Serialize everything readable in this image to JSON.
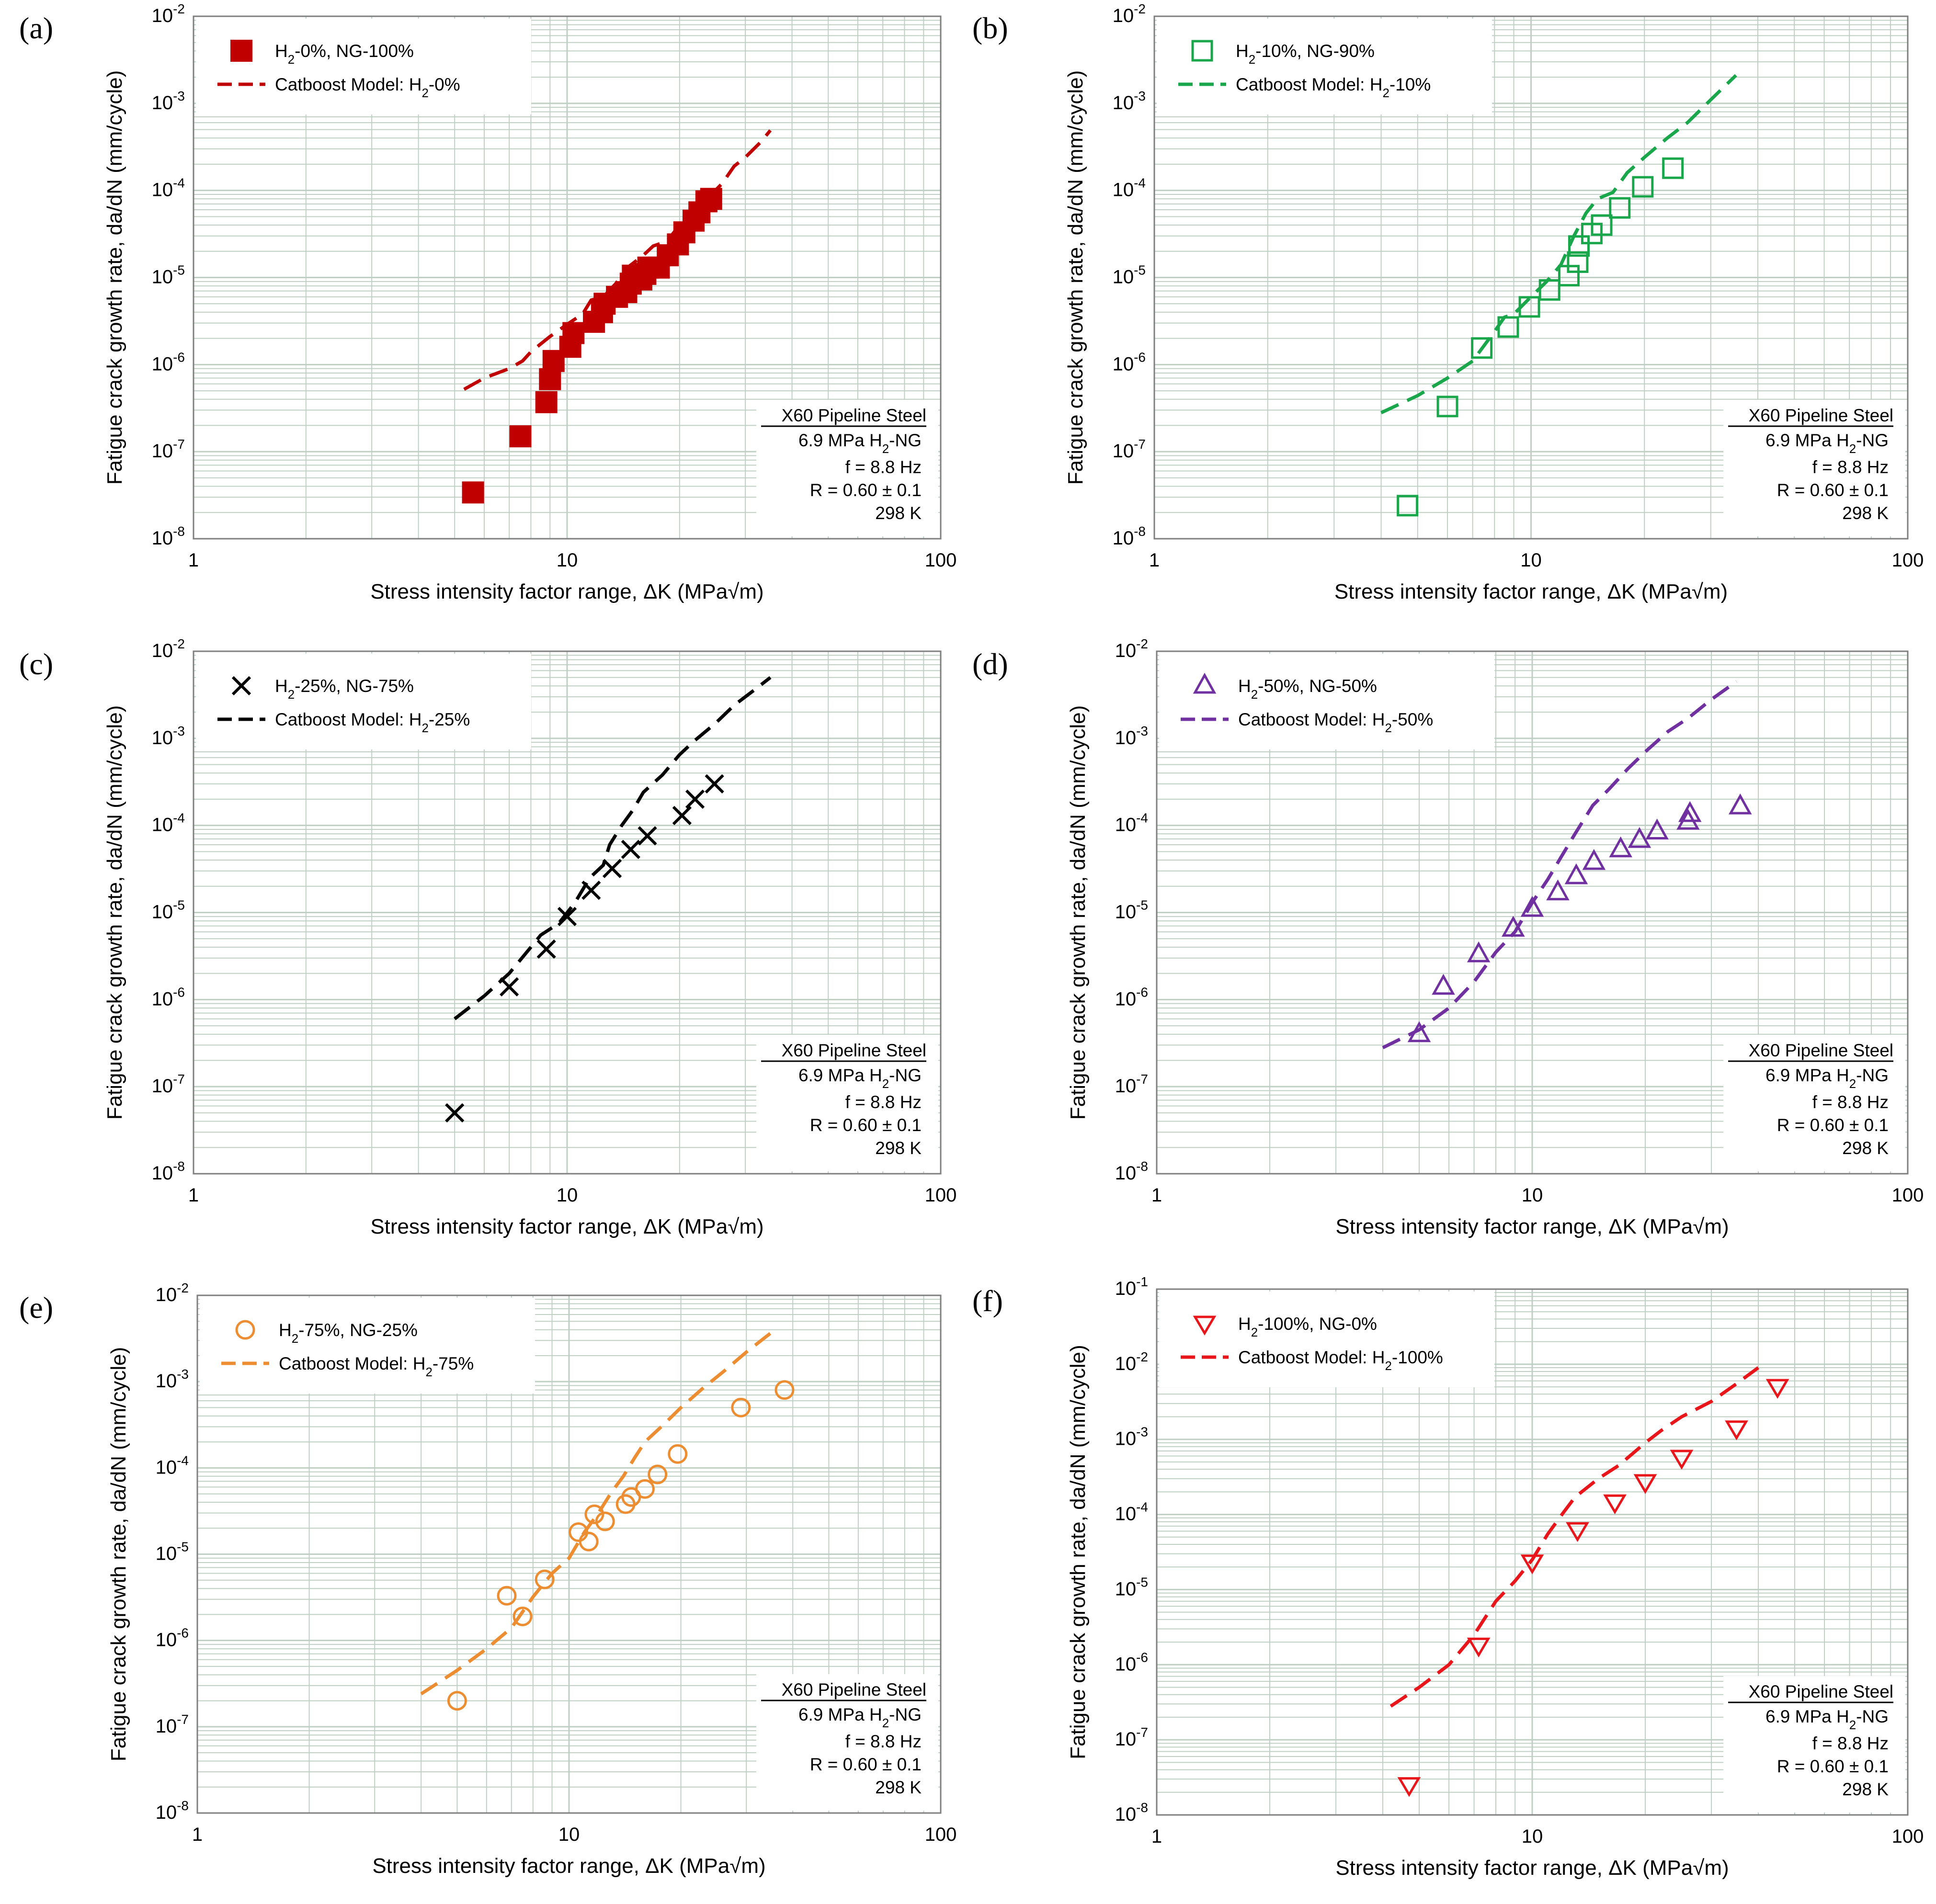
{
  "figure": {
    "x_axis_label": "Stress intensity factor range, ΔK (MPa√m)",
    "y_axis_label": "Fatigue crack growth rate, da/dN (mm/cycle)",
    "note": {
      "title": "X60 Pipeline Steel",
      "pressure": "6.9 MPa H2-NG",
      "frequency": "f = 8.8 Hz",
      "ratio": "R = 0.60 ± 0.1",
      "temperature": "298 K"
    }
  },
  "chart_data": [
    {
      "panel": "(a)",
      "type": "scatter",
      "color": "#c00000",
      "marker": "filled-square",
      "xscale": "log",
      "yscale": "log",
      "xlim": [
        1,
        100
      ],
      "ylim": [
        1e-08,
        0.01
      ],
      "x_ticks": [
        "1",
        "10",
        "100"
      ],
      "y_tick_exponents": [
        "-8",
        "-7",
        "-6",
        "-5",
        "-4",
        "-3",
        "-2"
      ],
      "legend": {
        "data": "H2-0%, NG-100%",
        "model": "Catboost Model: H2-0%"
      },
      "series": [
        {
          "name": "H2-0%, NG-100%",
          "kind": "data",
          "points": [
            [
              5.6,
              3.4e-08
            ],
            [
              7.5,
              1.5e-07
            ],
            [
              8.8,
              3.7e-07
            ],
            [
              9.0,
              6.8e-07
            ],
            [
              9.2,
              1.1e-06
            ],
            [
              10.2,
              1.6e-06
            ],
            [
              10.4,
              2.3e-06
            ],
            [
              11.8,
              3.1e-06
            ],
            [
              12.4,
              4e-06
            ],
            [
              12.6,
              5e-06
            ],
            [
              13.6,
              6e-06
            ],
            [
              14.4,
              6.8e-06
            ],
            [
              14.8,
              8.5e-06
            ],
            [
              15.0,
              1.05e-05
            ],
            [
              15.8,
              9.5e-06
            ],
            [
              16.2,
              1.1e-05
            ],
            [
              16.5,
              1.3e-05
            ],
            [
              17.6,
              1.3e-05
            ],
            [
              18.6,
              1.8e-05
            ],
            [
              19.8,
              2.4e-05
            ],
            [
              20.6,
              3.3e-05
            ],
            [
              21.8,
              4.5e-05
            ],
            [
              22.6,
              5.6e-05
            ],
            [
              23.6,
              7.5e-05
            ],
            [
              24.3,
              8e-05
            ]
          ]
        },
        {
          "name": "Catboost Model: H2-0%",
          "kind": "model",
          "points": [
            [
              5.3,
              5.2e-07
            ],
            [
              6.0,
              7e-07
            ],
            [
              7.0,
              9e-07
            ],
            [
              7.6,
              1.1e-06
            ],
            [
              8.0,
              1.4e-06
            ],
            [
              9.0,
              2.1e-06
            ],
            [
              10.0,
              2.9e-06
            ],
            [
              11.0,
              3.8e-06
            ],
            [
              11.6,
              5.5e-06
            ],
            [
              12.5,
              6e-06
            ],
            [
              13.5,
              8.5e-06
            ],
            [
              14.5,
              1.3e-05
            ],
            [
              16.0,
              1.8e-05
            ],
            [
              17.0,
              2.3e-05
            ],
            [
              18.5,
              2.6e-05
            ],
            [
              20.0,
              4e-05
            ],
            [
              22.0,
              5.5e-05
            ],
            [
              24.0,
              8.5e-05
            ],
            [
              26.0,
              0.00012
            ],
            [
              28.0,
              0.00019
            ],
            [
              30.0,
              0.00024
            ],
            [
              33.0,
              0.00036
            ],
            [
              35.0,
              0.00049
            ]
          ]
        }
      ]
    },
    {
      "panel": "(b)",
      "type": "scatter",
      "color": "#1aa64a",
      "marker": "open-square",
      "xscale": "log",
      "yscale": "log",
      "xlim": [
        1,
        100
      ],
      "ylim": [
        1e-08,
        0.01
      ],
      "x_ticks": [
        "1",
        "10",
        "100"
      ],
      "y_tick_exponents": [
        "-8",
        "-7",
        "-6",
        "-5",
        "-4",
        "-3",
        "-2"
      ],
      "legend": {
        "data": "H2-10%, NG-90%",
        "model": "Catboost Model: H2-10%"
      },
      "series": [
        {
          "name": "H2-10%, NG-90%",
          "kind": "data",
          "points": [
            [
              4.7,
              2.4e-08
            ],
            [
              6.0,
              3.3e-07
            ],
            [
              7.4,
              1.55e-06
            ],
            [
              8.7,
              2.7e-06
            ],
            [
              9.9,
              4.6e-06
            ],
            [
              11.2,
              7.2e-06
            ],
            [
              12.6,
              1.05e-05
            ],
            [
              13.3,
              1.5e-05
            ],
            [
              13.4,
              2.3e-05
            ],
            [
              14.5,
              3.2e-05
            ],
            [
              15.4,
              4e-05
            ],
            [
              17.2,
              6.3e-05
            ],
            [
              19.8,
              0.00011
            ],
            [
              23.8,
              0.00018
            ]
          ]
        },
        {
          "name": "Catboost Model: H2-10%",
          "kind": "model",
          "points": [
            [
              4.0,
              2.8e-07
            ],
            [
              5.0,
              4.4e-07
            ],
            [
              6.0,
              7e-07
            ],
            [
              7.0,
              1.1e-06
            ],
            [
              8.0,
              2.4e-06
            ],
            [
              8.5,
              3.5e-06
            ],
            [
              9.0,
              3.8e-06
            ],
            [
              10.0,
              6e-06
            ],
            [
              11.0,
              9e-06
            ],
            [
              12.0,
              1.4e-05
            ],
            [
              13.0,
              3e-05
            ],
            [
              14.0,
              5.5e-05
            ],
            [
              15.0,
              8e-05
            ],
            [
              16.5,
              9.5e-05
            ],
            [
              18.0,
              0.00016
            ],
            [
              20.0,
              0.00024
            ],
            [
              23.0,
              0.0004
            ],
            [
              26.0,
              0.0006
            ],
            [
              30.0,
              0.0011
            ],
            [
              35.0,
              0.0021
            ]
          ]
        }
      ]
    },
    {
      "panel": "(c)",
      "type": "scatter",
      "color": "#000000",
      "marker": "cross",
      "xscale": "log",
      "yscale": "log",
      "xlim": [
        1,
        100
      ],
      "ylim": [
        1e-08,
        0.01
      ],
      "x_ticks": [
        "1",
        "10",
        "100"
      ],
      "y_tick_exponents": [
        "-8",
        "-7",
        "-6",
        "-5",
        "-4",
        "-3",
        "-2"
      ],
      "legend": {
        "data": "H2-25%, NG-75%",
        "model": "Catboost Model: H2-25%"
      },
      "series": [
        {
          "name": "H2-25%, NG-75%",
          "kind": "data",
          "points": [
            [
              5.0,
              5e-08
            ],
            [
              7.0,
              1.4e-06
            ],
            [
              8.8,
              3.8e-06
            ],
            [
              10.0,
              9e-06
            ],
            [
              11.6,
              1.8e-05
            ],
            [
              13.2,
              3.2e-05
            ],
            [
              14.8,
              5.3e-05
            ],
            [
              16.4,
              7.6e-05
            ],
            [
              20.3,
              0.00013
            ],
            [
              22.0,
              0.0002
            ],
            [
              24.8,
              0.0003
            ]
          ]
        },
        {
          "name": "Catboost Model: H2-25%",
          "kind": "model",
          "points": [
            [
              5.0,
              6e-07
            ],
            [
              6.0,
              1.1e-06
            ],
            [
              7.0,
              2e-06
            ],
            [
              8.0,
              4e-06
            ],
            [
              8.5,
              5.5e-06
            ],
            [
              9.5,
              7.5e-06
            ],
            [
              10.5,
              1.3e-05
            ],
            [
              11.5,
              2.5e-05
            ],
            [
              12.5,
              3.5e-05
            ],
            [
              13.0,
              6e-05
            ],
            [
              14.0,
              0.0001
            ],
            [
              15.0,
              0.00015
            ],
            [
              16.0,
              0.00024
            ],
            [
              18.0,
              0.00038
            ],
            [
              20.0,
              0.00065
            ],
            [
              22.0,
              0.00095
            ],
            [
              25.0,
              0.0015
            ],
            [
              28.0,
              0.0024
            ],
            [
              32.0,
              0.0037
            ],
            [
              35.0,
              0.005
            ]
          ]
        }
      ]
    },
    {
      "panel": "(d)",
      "type": "scatter",
      "color": "#7030a0",
      "marker": "open-triangle-up",
      "xscale": "log",
      "yscale": "log",
      "xlim": [
        1,
        100
      ],
      "ylim": [
        1e-08,
        0.01
      ],
      "x_ticks": [
        "1",
        "10",
        "100"
      ],
      "y_tick_exponents": [
        "-8",
        "-7",
        "-6",
        "-5",
        "-4",
        "-3",
        "-2"
      ],
      "legend": {
        "data": "H2-50%, NG-50%",
        "model": "Catboost Model: H2-50%"
      },
      "series": [
        {
          "name": "H2-50%, NG-50%",
          "kind": "data",
          "points": [
            [
              5.0,
              4e-07
            ],
            [
              5.8,
              1.4e-06
            ],
            [
              7.2,
              3.3e-06
            ],
            [
              8.9,
              6.5e-06
            ],
            [
              10.0,
              1.1e-05
            ],
            [
              11.7,
              1.7e-05
            ],
            [
              13.1,
              2.6e-05
            ],
            [
              14.6,
              3.8e-05
            ],
            [
              17.2,
              5.3e-05
            ],
            [
              19.3,
              6.8e-05
            ],
            [
              21.5,
              8.5e-05
            ],
            [
              26.0,
              0.00011
            ],
            [
              26.3,
              0.000135
            ],
            [
              35.8,
              0.000165
            ]
          ]
        },
        {
          "name": "Catboost Model: H2-50%",
          "kind": "model",
          "points": [
            [
              4.0,
              2.8e-07
            ],
            [
              5.0,
              4.5e-07
            ],
            [
              6.0,
              8e-07
            ],
            [
              7.0,
              1.6e-06
            ],
            [
              8.0,
              3.5e-06
            ],
            [
              9.0,
              6e-06
            ],
            [
              10.0,
              1.3e-05
            ],
            [
              11.0,
              2.4e-05
            ],
            [
              12.0,
              4.5e-05
            ],
            [
              13.0,
              8e-05
            ],
            [
              14.5,
              0.00017
            ],
            [
              16.0,
              0.00026
            ],
            [
              18.0,
              0.00045
            ],
            [
              20.0,
              0.0007
            ],
            [
              23.0,
              0.0012
            ],
            [
              26.0,
              0.0017
            ],
            [
              30.0,
              0.0028
            ],
            [
              35.0,
              0.0045
            ]
          ]
        }
      ]
    },
    {
      "panel": "(e)",
      "type": "scatter",
      "color": "#ed8d31",
      "marker": "open-circle",
      "xscale": "log",
      "yscale": "log",
      "xlim": [
        1,
        100
      ],
      "ylim": [
        1e-08,
        0.01
      ],
      "x_ticks": [
        "1",
        "10",
        "100"
      ],
      "y_tick_exponents": [
        "-8",
        "-7",
        "-6",
        "-5",
        "-4",
        "-3",
        "-2"
      ],
      "legend": {
        "data": "H2-75%, NG-25%",
        "model": "Catboost Model: H2-75%"
      },
      "series": [
        {
          "name": "H2-75%, NG-25%",
          "kind": "data",
          "points": [
            [
              5.0,
              2e-07
            ],
            [
              6.8,
              3.3e-06
            ],
            [
              7.5,
              1.9e-06
            ],
            [
              8.6,
              5.1e-06
            ],
            [
              10.6,
              1.8e-05
            ],
            [
              11.3,
              1.4e-05
            ],
            [
              11.7,
              2.9e-05
            ],
            [
              12.5,
              2.4e-05
            ],
            [
              14.2,
              3.8e-05
            ],
            [
              14.7,
              4.6e-05
            ],
            [
              16.0,
              5.7e-05
            ],
            [
              17.3,
              8.4e-05
            ],
            [
              19.6,
              0.000145
            ],
            [
              29.0,
              0.0005
            ],
            [
              38.0,
              0.0008
            ]
          ]
        },
        {
          "name": "Catboost Model: H2-75%",
          "kind": "model",
          "points": [
            [
              4.0,
              2.4e-07
            ],
            [
              5.0,
              4.5e-07
            ],
            [
              6.0,
              8e-07
            ],
            [
              7.0,
              1.4e-06
            ],
            [
              8.0,
              3.2e-06
            ],
            [
              9.0,
              6e-06
            ],
            [
              10.0,
              9e-06
            ],
            [
              11.0,
              1.8e-05
            ],
            [
              12.0,
              3e-05
            ],
            [
              13.0,
              5.2e-05
            ],
            [
              14.0,
              8e-05
            ],
            [
              15.0,
              0.00013
            ],
            [
              16.0,
              0.0002
            ],
            [
              18.0,
              0.00032
            ],
            [
              20.0,
              0.0005
            ],
            [
              23.0,
              0.00085
            ],
            [
              26.0,
              0.0013
            ],
            [
              30.0,
              0.0022
            ],
            [
              35.0,
              0.0037
            ]
          ]
        }
      ]
    },
    {
      "panel": "(f)",
      "type": "scatter",
      "color": "#e8161a",
      "marker": "open-triangle-down",
      "xscale": "log",
      "yscale": "log",
      "xlim": [
        1,
        100
      ],
      "ylim": [
        1e-08,
        0.1
      ],
      "x_ticks": [
        "1",
        "10",
        "100"
      ],
      "y_tick_exponents": [
        "-8",
        "-7",
        "-6",
        "-5",
        "-4",
        "-3",
        "-2",
        "-1"
      ],
      "legend": {
        "data": "H2-100%, NG-0%",
        "model": "Catboost Model: H2-100%"
      },
      "series": [
        {
          "name": "H2-100%, NG-0%",
          "kind": "data",
          "points": [
            [
              4.7,
              2.5e-08
            ],
            [
              7.2,
              1.8e-06
            ],
            [
              10.0,
              2.3e-05
            ],
            [
              13.2,
              6.2e-05
            ],
            [
              16.6,
              0.000145
            ],
            [
              20.0,
              0.00027
            ],
            [
              25.0,
              0.00057
            ],
            [
              35.0,
              0.0014
            ],
            [
              45.0,
              0.005
            ]
          ]
        },
        {
          "name": "Catboost Model: H2-100%",
          "kind": "model",
          "points": [
            [
              4.2,
              2.8e-07
            ],
            [
              5.0,
              5e-07
            ],
            [
              6.0,
              1e-06
            ],
            [
              7.0,
              2.5e-06
            ],
            [
              8.0,
              7e-06
            ],
            [
              9.0,
              1.3e-05
            ],
            [
              10.0,
              2.5e-05
            ],
            [
              11.0,
              5.5e-05
            ],
            [
              12.0,
              0.0001
            ],
            [
              13.0,
              0.00017
            ],
            [
              15.0,
              0.0003
            ],
            [
              17.0,
              0.00045
            ],
            [
              20.0,
              0.0009
            ],
            [
              22.0,
              0.0013
            ],
            [
              25.0,
              0.002
            ],
            [
              30.0,
              0.0032
            ],
            [
              35.0,
              0.0055
            ],
            [
              40.0,
              0.009
            ]
          ]
        }
      ]
    }
  ]
}
